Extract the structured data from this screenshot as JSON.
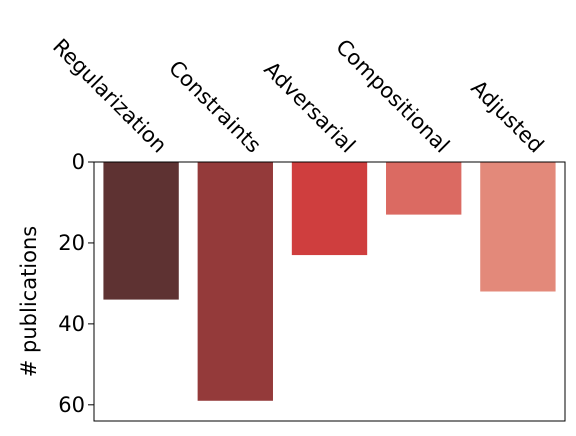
{
  "chart_data": {
    "type": "bar",
    "categories": [
      "Regularization",
      "Constraints",
      "Adversarial",
      "Compositional",
      "Adjusted"
    ],
    "values": [
      34,
      59,
      23,
      13,
      32
    ],
    "colors": [
      "#5e3232",
      "#943a3a",
      "#cf3e3e",
      "#db6a62",
      "#e3897a"
    ],
    "ylabel": "# publications",
    "ylim": [
      0,
      64
    ],
    "yticks": [
      0,
      20,
      40,
      60
    ],
    "y_axis_inverted": true,
    "category_axis_position": "top",
    "category_label_rotation": "slanted (-45 deg)",
    "grid": false,
    "legend": "none"
  }
}
